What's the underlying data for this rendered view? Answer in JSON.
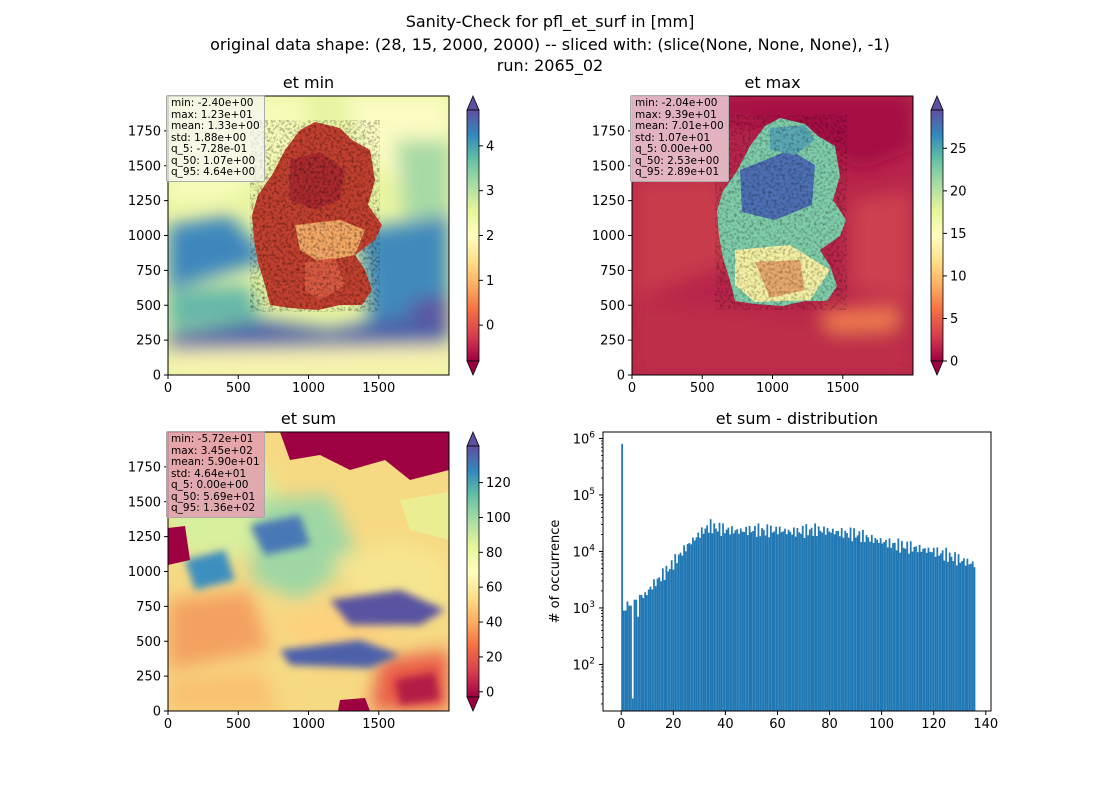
{
  "suptitle": {
    "line1": "Sanity-Check for pfl_et_surf in [mm]",
    "line2": "original data shape: (28, 15, 2000, 2000) -- sliced with: (slice(None, None, None), -1)",
    "line3": "run: 2065_02"
  },
  "colors": {
    "colormap": "Spectral",
    "hist_bar": "#1f77b4"
  },
  "chart_data": [
    {
      "type": "heatmap",
      "title": "et min",
      "xlim": [
        0,
        2000
      ],
      "ylim": [
        0,
        2000
      ],
      "x_ticks": [
        "0",
        "500",
        "1000",
        "1500"
      ],
      "y_ticks": [
        "0",
        "250",
        "500",
        "750",
        "1000",
        "1250",
        "1500",
        "1750"
      ],
      "colorbar": {
        "range": [
          -0.8,
          4.8
        ],
        "ticks": [
          "0",
          "1",
          "2",
          "3",
          "4"
        ],
        "extend": "both"
      },
      "stats": [
        "min: -2.40e+00",
        "max: 1.23e+01",
        "mean: 1.33e+00",
        "std: 1.88e+00",
        "q_5: -7.28e-01",
        "q_50: 1.07e+00",
        "q_95: 4.64e+00"
      ]
    },
    {
      "type": "heatmap",
      "title": "et max",
      "xlim": [
        0,
        2000
      ],
      "ylim": [
        0,
        2000
      ],
      "x_ticks": [
        "0",
        "500",
        "1000",
        "1500"
      ],
      "y_ticks": [
        "0",
        "250",
        "500",
        "750",
        "1000",
        "1250",
        "1500",
        "1750"
      ],
      "colorbar": {
        "range": [
          0,
          29.5
        ],
        "ticks": [
          "0",
          "5",
          "10",
          "15",
          "20",
          "25"
        ],
        "extend": "both"
      },
      "stats": [
        "min: -2.04e+00",
        "max: 9.39e+01",
        "mean: 7.01e+00",
        "std: 1.07e+01",
        "q_5: 0.00e+00",
        "q_50: 2.53e+00",
        "q_95: 2.89e+01"
      ]
    },
    {
      "type": "heatmap",
      "title": "et sum",
      "xlim": [
        0,
        2000
      ],
      "ylim": [
        0,
        2000
      ],
      "x_ticks": [
        "0",
        "500",
        "1000",
        "1500"
      ],
      "y_ticks": [
        "0",
        "250",
        "500",
        "750",
        "1000",
        "1250",
        "1500",
        "1750"
      ],
      "colorbar": {
        "range": [
          -3,
          141
        ],
        "ticks": [
          "0",
          "20",
          "40",
          "60",
          "80",
          "100",
          "120"
        ],
        "extend": "both"
      },
      "stats": [
        "min: -5.72e+01",
        "max: 3.45e+02",
        "mean: 5.90e+01",
        "std: 4.64e+01",
        "q_5: 0.00e+00",
        "q_50: 5.69e+01",
        "q_95: 1.36e+02"
      ]
    },
    {
      "type": "bar",
      "title": "et sum - distribution",
      "xlabel": "",
      "ylabel": "# of occurrence",
      "xlim": [
        -7,
        142
      ],
      "ylog": true,
      "ylim": [
        15,
        1300000
      ],
      "x_ticks": [
        "0",
        "20",
        "40",
        "60",
        "80",
        "100",
        "120",
        "140"
      ],
      "y_ticks": [
        "10^2",
        "10^3",
        "10^4",
        "10^5",
        "10^6"
      ],
      "bin_width": 0.68,
      "bins": [
        {
          "x": 0,
          "count": 800000
        },
        {
          "x": 1,
          "count": 900
        },
        {
          "x": 2,
          "count": 1300
        },
        {
          "x": 3,
          "count": 1100
        },
        {
          "x": 4,
          "count": 25
        },
        {
          "x": 5,
          "count": 1400
        },
        {
          "x": 6,
          "count": 700
        },
        {
          "x": 7,
          "count": 1700
        },
        {
          "x": 8,
          "count": 1500
        },
        {
          "x": 10,
          "count": 2000
        },
        {
          "x": 12,
          "count": 2600
        },
        {
          "x": 14,
          "count": 3200
        },
        {
          "x": 16,
          "count": 4000
        },
        {
          "x": 18,
          "count": 5000
        },
        {
          "x": 20,
          "count": 6500
        },
        {
          "x": 22,
          "count": 8500
        },
        {
          "x": 24,
          "count": 11000
        },
        {
          "x": 26,
          "count": 14000
        },
        {
          "x": 28,
          "count": 17000
        },
        {
          "x": 30,
          "count": 21000
        },
        {
          "x": 32,
          "count": 25000
        },
        {
          "x": 34,
          "count": 28000
        },
        {
          "x": 36,
          "count": 26000
        },
        {
          "x": 40,
          "count": 24000
        },
        {
          "x": 45,
          "count": 23000
        },
        {
          "x": 50,
          "count": 24000
        },
        {
          "x": 55,
          "count": 23000
        },
        {
          "x": 60,
          "count": 24000
        },
        {
          "x": 65,
          "count": 22000
        },
        {
          "x": 70,
          "count": 23000
        },
        {
          "x": 75,
          "count": 24000
        },
        {
          "x": 80,
          "count": 23000
        },
        {
          "x": 85,
          "count": 21000
        },
        {
          "x": 90,
          "count": 20000
        },
        {
          "x": 95,
          "count": 17000
        },
        {
          "x": 100,
          "count": 15000
        },
        {
          "x": 105,
          "count": 13000
        },
        {
          "x": 110,
          "count": 12000
        },
        {
          "x": 115,
          "count": 11000
        },
        {
          "x": 120,
          "count": 10000
        },
        {
          "x": 125,
          "count": 8500
        },
        {
          "x": 130,
          "count": 7000
        },
        {
          "x": 135,
          "count": 6000
        }
      ]
    }
  ]
}
